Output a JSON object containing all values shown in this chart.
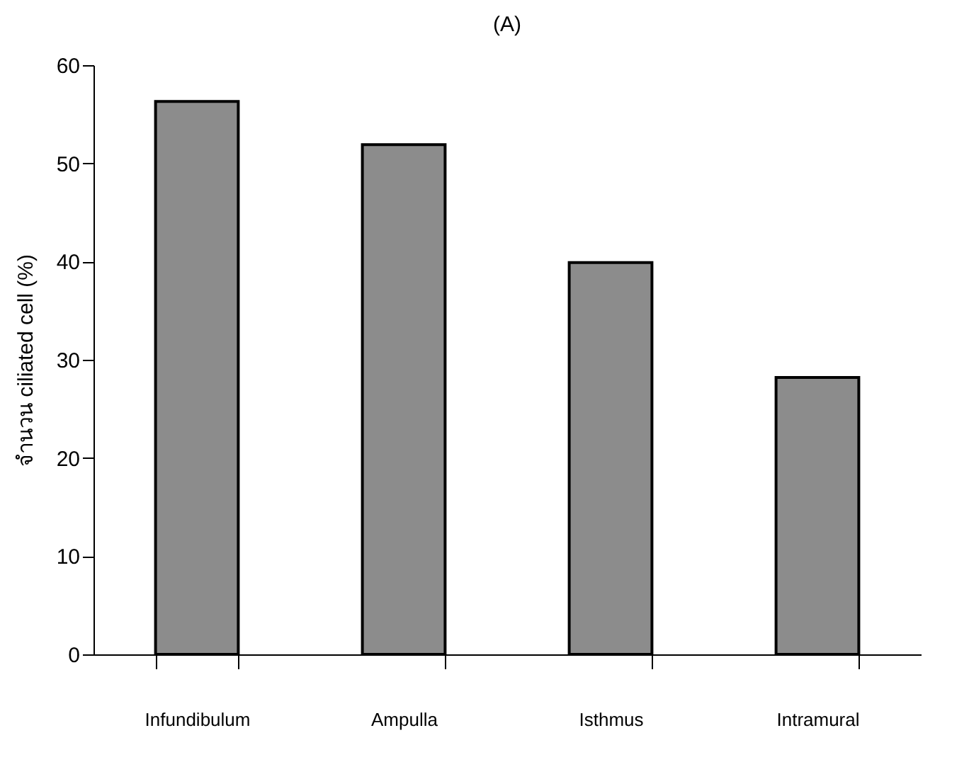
{
  "chart_data": {
    "type": "bar",
    "title": "(A)",
    "ylabel": "จำนวน ciliated cell (%)",
    "categories": [
      "Infundibulum",
      "Ampulla",
      "Isthmus",
      "Intramural"
    ],
    "values": [
      56.3,
      51.9,
      39.9,
      28.2
    ],
    "color": "#8c8c8c",
    "ylim": [
      0,
      60
    ],
    "yticks": [
      0,
      10,
      20,
      30,
      40,
      50,
      60
    ],
    "grid": false
  }
}
